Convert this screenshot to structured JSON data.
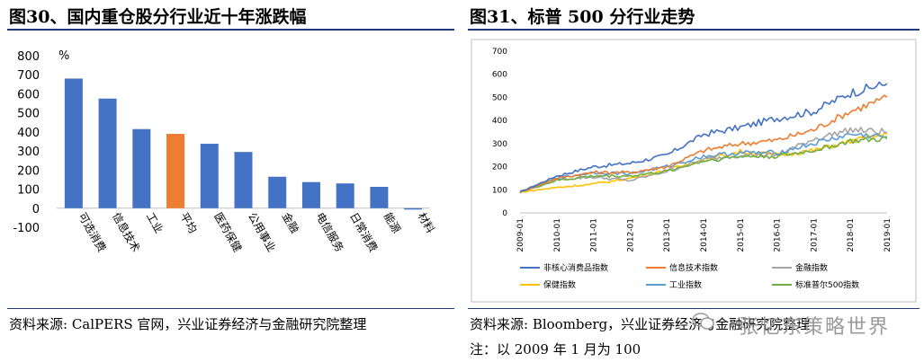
{
  "left": {
    "title": "图30、国内重仓股分行业近十年涨跌幅",
    "source": "资料来源: CalPERS 官网，兴业证券经济与金融研究院整理"
  },
  "right": {
    "title": "图31、标普 500 分行业走势",
    "source": "资料来源: Bloomberg，兴业证券经济与金融研究院整理",
    "note": "注：以 2009 年 1 月为 100"
  },
  "watermark": "张忆东策略世界",
  "colors": {
    "bar_blue": "#4472c4",
    "bar_orange": "#ed7d31",
    "rule": "#1f3b7a"
  },
  "chart_data": [
    {
      "type": "bar",
      "unit": "%",
      "categories": [
        "可选消费",
        "信息技术",
        "工业",
        "平均",
        "医药保健",
        "公用事业",
        "金融",
        "电信服务",
        "日常消费",
        "能源",
        "材料"
      ],
      "values": [
        680,
        575,
        415,
        390,
        338,
        295,
        165,
        137,
        130,
        112,
        -4
      ],
      "highlight": "平均",
      "yticks": [
        "800",
        "700",
        "600",
        "500",
        "400",
        "300",
        "200",
        "100",
        "0",
        "-100"
      ],
      "ylim": [
        -100,
        800
      ],
      "grid": false
    },
    {
      "type": "line",
      "x": [
        "2009-01",
        "2010-01",
        "2011-01",
        "2012-01",
        "2013-01",
        "2014-01",
        "2015-01",
        "2016-01",
        "2017-01",
        "2018-01",
        "2019-01"
      ],
      "yticks": [
        "700",
        "600",
        "500",
        "400",
        "300",
        "200",
        "100",
        "0"
      ],
      "ylim": [
        0,
        700
      ],
      "series": [
        {
          "name": "非核心消费品指数",
          "color": "#4472c4",
          "values": [
            90,
            160,
            200,
            215,
            250,
            340,
            370,
            410,
            440,
            520,
            560
          ]
        },
        {
          "name": "信息技术指数",
          "color": "#ed7d31",
          "values": [
            90,
            150,
            175,
            175,
            200,
            270,
            300,
            315,
            360,
            440,
            500
          ]
        },
        {
          "name": "金融指数",
          "color": "#a5a5a5",
          "values": [
            90,
            145,
            155,
            140,
            180,
            230,
            250,
            250,
            320,
            360,
            350
          ]
        },
        {
          "name": "保健指数",
          "color": "#ffc000",
          "values": [
            90,
            110,
            125,
            150,
            185,
            230,
            265,
            250,
            270,
            310,
            340
          ]
        },
        {
          "name": "工业指数",
          "color": "#5b9bd5",
          "values": [
            90,
            150,
            175,
            170,
            200,
            245,
            260,
            260,
            300,
            340,
            330
          ]
        },
        {
          "name": "标准普尔500指数",
          "color": "#70ad47",
          "values": [
            90,
            140,
            160,
            160,
            180,
            225,
            245,
            245,
            270,
            310,
            320
          ]
        }
      ]
    }
  ]
}
